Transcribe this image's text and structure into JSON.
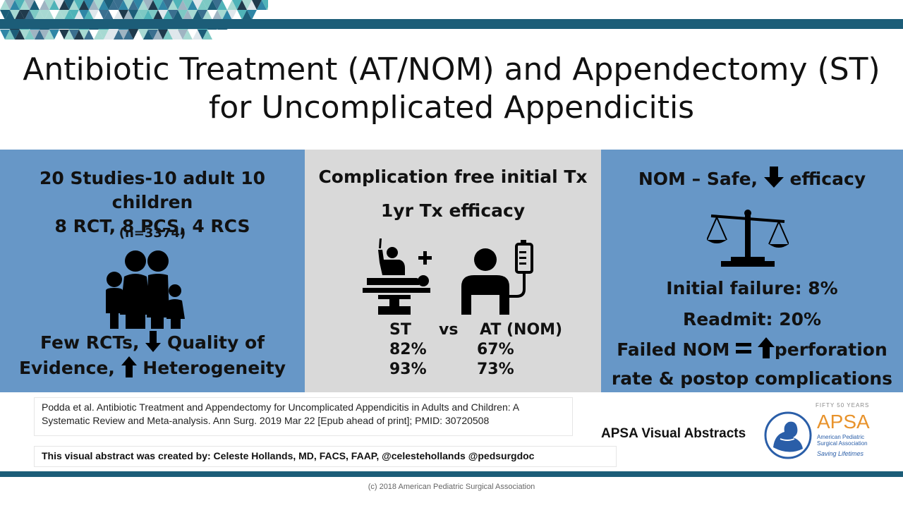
{
  "title": {
    "line1": "Antibiotic Treatment (AT/NOM) and Appendectomy (ST)",
    "line2": "for Uncomplicated Appendicitis"
  },
  "left_panel": {
    "line1": "20 Studies-10 adult 10 children",
    "line2": "8 RCT, 8 PCS, 4 RCS",
    "sample": "(n=3374)",
    "icon": "family-icon",
    "bottom_line1_a": "Few RCTs,",
    "bottom_line1_b": "Quality of",
    "bottom_line2_a": "Evidence,",
    "bottom_line2_b": "Heterogeneity"
  },
  "middle_panel": {
    "heading1": "Complication free initial Tx",
    "heading2": "1yr Tx efficacy",
    "icons": [
      "surgery-icon",
      "iv-drip-patient-icon"
    ],
    "col_st": "ST",
    "col_vs": "vs",
    "col_at": "AT (NOM)",
    "rows": [
      {
        "st": "82%",
        "at": "67%"
      },
      {
        "st": "93%",
        "at": "73%"
      }
    ]
  },
  "right_panel": {
    "heading_a": "NOM – Safe,",
    "heading_b": "efficacy",
    "icon": "scales-icon",
    "line1": "Initial failure: 8%",
    "line2": "Readmit: 20%",
    "line3_a": "Failed NOM",
    "line3_b": "perforation",
    "line4": "rate & postop complications"
  },
  "reference": "Podda et al. Antibiotic Treatment and Appendectomy for Uncomplicated Appendicitis in Adults and Children: A Systematic Review and Meta-analysis. Ann Surg. 2019 Mar 22 [Epub ahead of print]; PMID: 30720508",
  "creator": "This visual abstract was created by: Celeste Hollands, MD, FACS, FAAP, @celestehollands @pedsurgdoc",
  "apsa_label": "APSA Visual Abstracts",
  "logo": {
    "top_text": "FIFTY 50 YEARS",
    "name": "APSA",
    "org_line1": "American Pediatric",
    "org_line2": "Surgical Association",
    "tagline": "Saving Lifetimes"
  },
  "copyright": "(c) 2018 American Pediatric Surgical Association",
  "colors": {
    "header_bar": "#1c5d78",
    "blue_panel": "#6797c7",
    "gray_panel": "#d9d9d9",
    "logo_orange": "#e8932c",
    "logo_blue": "#2a5ea8"
  }
}
